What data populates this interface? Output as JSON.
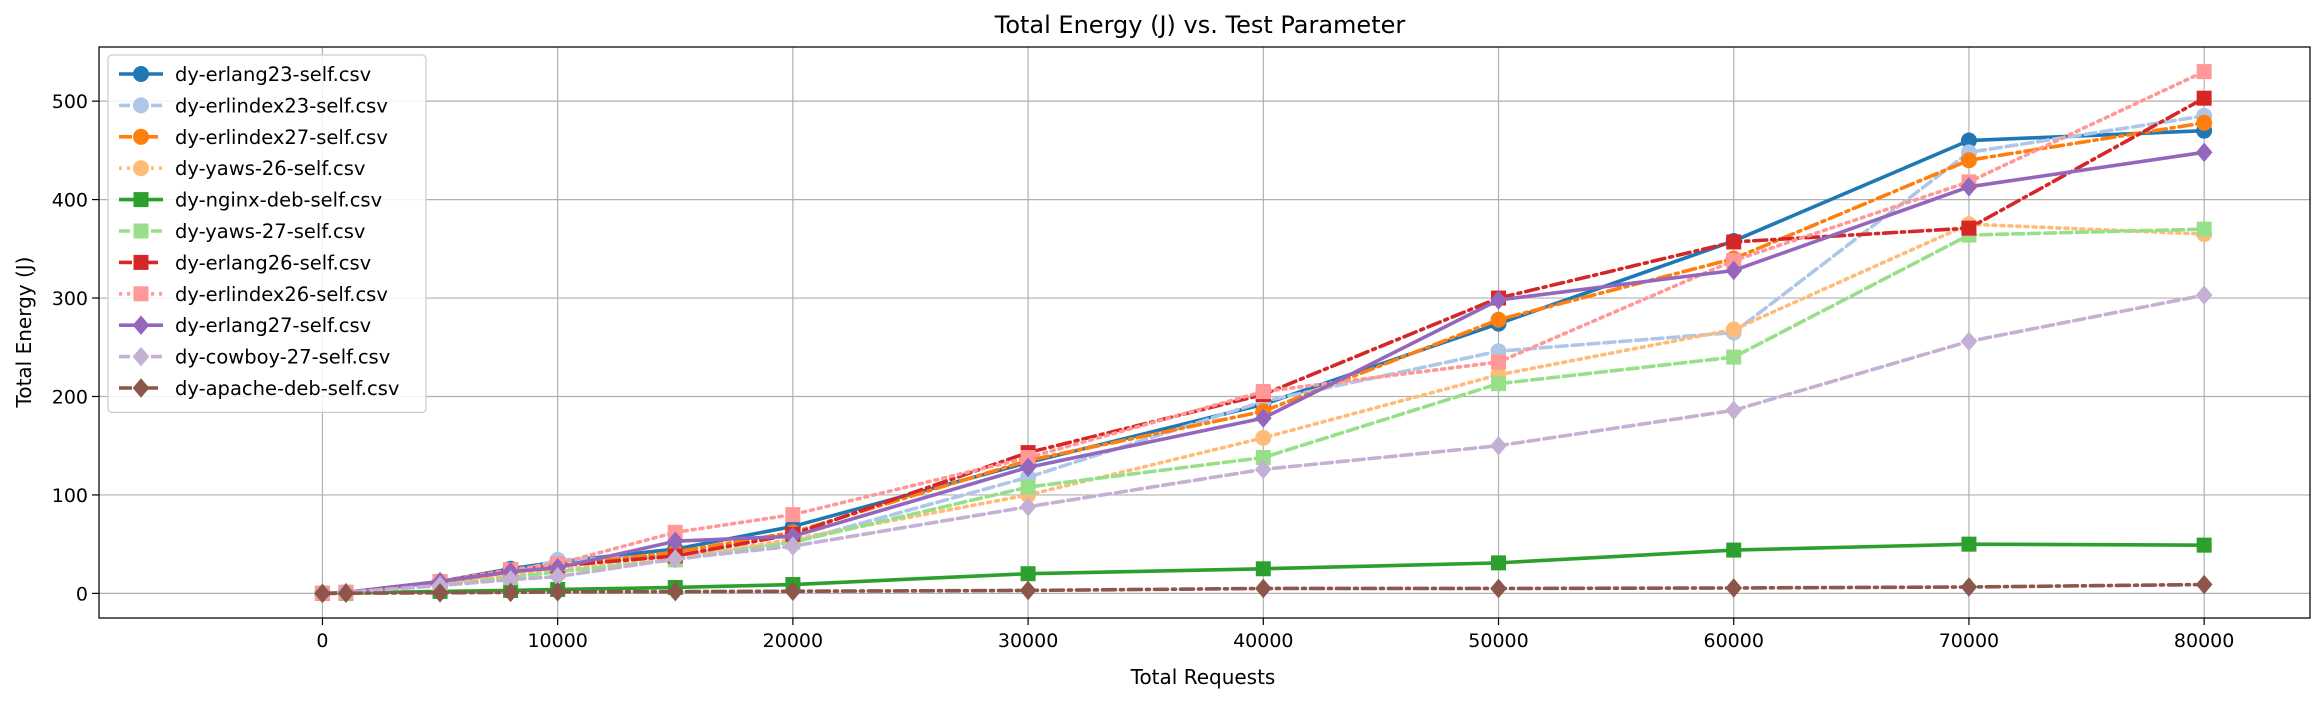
{
  "chart_data": {
    "type": "line",
    "title": "Total Energy (J) vs. Test Parameter",
    "xlabel": "Total Requests",
    "ylabel": "Total Energy (J)",
    "xlim": [
      -9500,
      84500
    ],
    "ylim": [
      -25,
      555
    ],
    "xticks": [
      0,
      10000,
      20000,
      30000,
      40000,
      50000,
      60000,
      70000,
      80000
    ],
    "yticks": [
      0,
      100,
      200,
      300,
      400,
      500
    ],
    "grid": true,
    "legend_position": "upper-left",
    "series": [
      {
        "name": "dy-erlang23-self.csv",
        "color": "#1f77b4",
        "dash": "solid",
        "marker": "circle",
        "x": [
          0,
          1000,
          5000,
          8000,
          10000,
          15000,
          20000,
          30000,
          40000,
          50000,
          60000,
          70000,
          80000
        ],
        "y": [
          0,
          1,
          12,
          25,
          32,
          45,
          68,
          133,
          192,
          274,
          358,
          460,
          470
        ]
      },
      {
        "name": "dy-erlindex23-self.csv",
        "color": "#aec7e8",
        "dash": "dashed",
        "marker": "circle",
        "x": [
          0,
          1000,
          5000,
          8000,
          10000,
          15000,
          20000,
          30000,
          40000,
          50000,
          60000,
          70000,
          80000
        ],
        "y": [
          0,
          1,
          8,
          20,
          34,
          38,
          52,
          118,
          195,
          246,
          265,
          448,
          485
        ]
      },
      {
        "name": "dy-erlindex27-self.csv",
        "color": "#ff7f0e",
        "dash": "dashdot",
        "marker": "circle",
        "x": [
          0,
          1000,
          5000,
          8000,
          10000,
          15000,
          20000,
          30000,
          40000,
          50000,
          60000,
          70000,
          80000
        ],
        "y": [
          0,
          1,
          10,
          22,
          28,
          42,
          62,
          135,
          185,
          278,
          340,
          440,
          478
        ]
      },
      {
        "name": "dy-yaws-26-self.csv",
        "color": "#ffbb78",
        "dash": "dotted",
        "marker": "circle",
        "x": [
          0,
          1000,
          5000,
          8000,
          10000,
          15000,
          20000,
          30000,
          40000,
          50000,
          60000,
          70000,
          80000
        ],
        "y": [
          0,
          1,
          9,
          18,
          24,
          36,
          55,
          100,
          158,
          222,
          268,
          375,
          365
        ]
      },
      {
        "name": "dy-nginx-deb-self.csv",
        "color": "#2ca02c",
        "dash": "solid",
        "marker": "square",
        "x": [
          0,
          1000,
          5000,
          8000,
          10000,
          15000,
          20000,
          30000,
          40000,
          50000,
          60000,
          70000,
          80000
        ],
        "y": [
          0,
          0.3,
          2,
          3,
          4,
          6,
          9,
          20,
          25,
          31,
          44,
          50,
          49
        ]
      },
      {
        "name": "dy-yaws-27-self.csv",
        "color": "#98df8a",
        "dash": "dashed",
        "marker": "square",
        "x": [
          0,
          1000,
          5000,
          8000,
          10000,
          15000,
          20000,
          30000,
          40000,
          50000,
          60000,
          70000,
          80000
        ],
        "y": [
          0,
          1,
          8,
          16,
          22,
          34,
          52,
          108,
          138,
          213,
          240,
          364,
          370
        ]
      },
      {
        "name": "dy-erlang26-self.csv",
        "color": "#d62728",
        "dash": "dashdot",
        "marker": "square",
        "x": [
          0,
          1000,
          5000,
          8000,
          10000,
          15000,
          20000,
          30000,
          40000,
          50000,
          60000,
          70000,
          80000
        ],
        "y": [
          0,
          1,
          12,
          24,
          28,
          38,
          60,
          143,
          202,
          300,
          357,
          371,
          503
        ]
      },
      {
        "name": "dy-erlindex26-self.csv",
        "color": "#ff9896",
        "dash": "dotted",
        "marker": "square",
        "x": [
          0,
          1000,
          5000,
          8000,
          10000,
          15000,
          20000,
          30000,
          40000,
          50000,
          60000,
          70000,
          80000
        ],
        "y": [
          0,
          1,
          12,
          24,
          30,
          62,
          80,
          138,
          205,
          235,
          338,
          418,
          530
        ]
      },
      {
        "name": "dy-erlang27-self.csv",
        "color": "#9467bd",
        "dash": "solid",
        "marker": "diamond",
        "x": [
          0,
          1000,
          5000,
          8000,
          10000,
          15000,
          20000,
          30000,
          40000,
          50000,
          60000,
          70000,
          80000
        ],
        "y": [
          0,
          1,
          12,
          22,
          26,
          53,
          58,
          128,
          178,
          298,
          328,
          413,
          448
        ]
      },
      {
        "name": "dy-cowboy-27-self.csv",
        "color": "#c5b0d5",
        "dash": "dashed",
        "marker": "diamond",
        "x": [
          0,
          1000,
          5000,
          8000,
          10000,
          15000,
          20000,
          30000,
          40000,
          50000,
          60000,
          70000,
          80000
        ],
        "y": [
          0,
          1,
          8,
          14,
          17,
          35,
          48,
          88,
          126,
          150,
          186,
          256,
          303
        ]
      },
      {
        "name": "dy-apache-deb-self.csv",
        "color": "#8c564b",
        "dash": "dashdot",
        "marker": "diamond",
        "x": [
          0,
          1000,
          5000,
          8000,
          10000,
          15000,
          20000,
          30000,
          40000,
          50000,
          60000,
          70000,
          80000
        ],
        "y": [
          0,
          0.2,
          0.6,
          1,
          1.5,
          1.8,
          2.2,
          3,
          5,
          5,
          5.5,
          6.5,
          9
        ]
      }
    ]
  }
}
